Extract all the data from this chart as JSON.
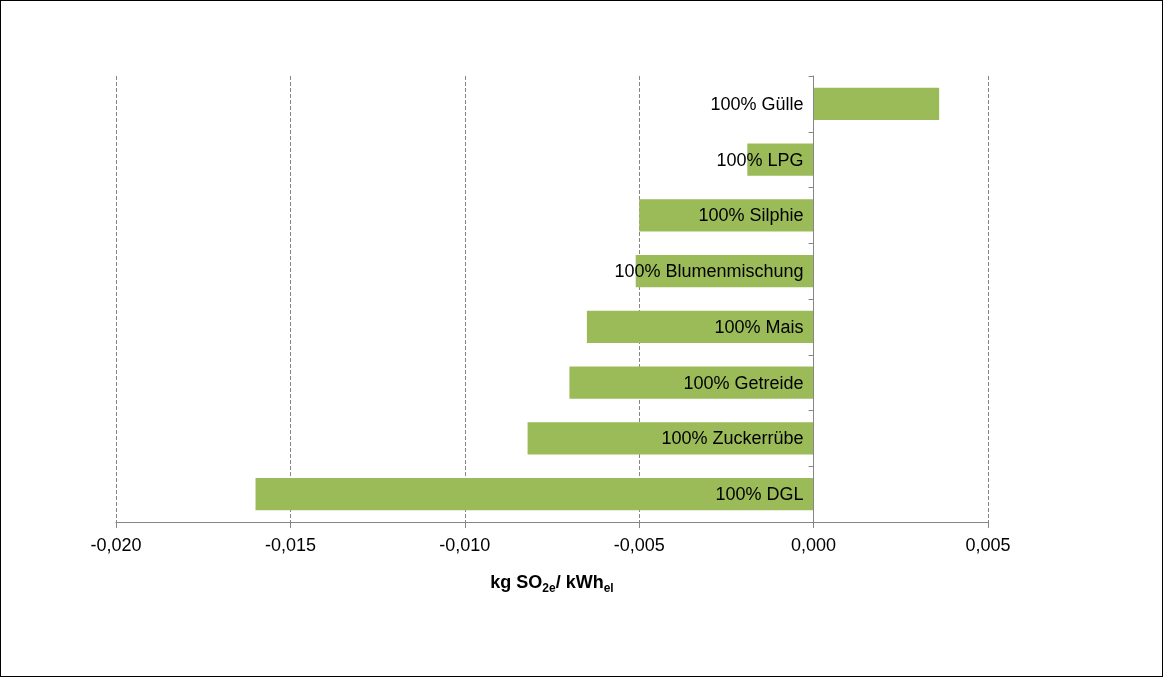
{
  "chart_data": {
    "type": "bar",
    "orientation": "horizontal",
    "categories": [
      "100% Gülle",
      "100% LPG",
      "100% Silphie",
      "100% Blumenmischung",
      "100% Mais",
      "100% Getreide",
      "100% Zuckerrübe",
      "100% DGL"
    ],
    "values": [
      0.0036,
      -0.0019,
      -0.005,
      -0.0051,
      -0.0065,
      -0.007,
      -0.0082,
      -0.016
    ],
    "color": "#9bbb59",
    "xlabel": "kg SO$_{2e}$/ kWh$_{el}$",
    "xlim": [
      -0.02,
      0.005
    ],
    "xticks": [
      {
        "value": -0.02,
        "label": "-0,020"
      },
      {
        "value": -0.015,
        "label": "-0,015"
      },
      {
        "value": -0.01,
        "label": "-0,010"
      },
      {
        "value": -0.005,
        "label": "-0,005"
      },
      {
        "value": 0,
        "label": "0,000"
      },
      {
        "value": 0.005,
        "label": "0,005"
      }
    ],
    "grid": "x"
  }
}
